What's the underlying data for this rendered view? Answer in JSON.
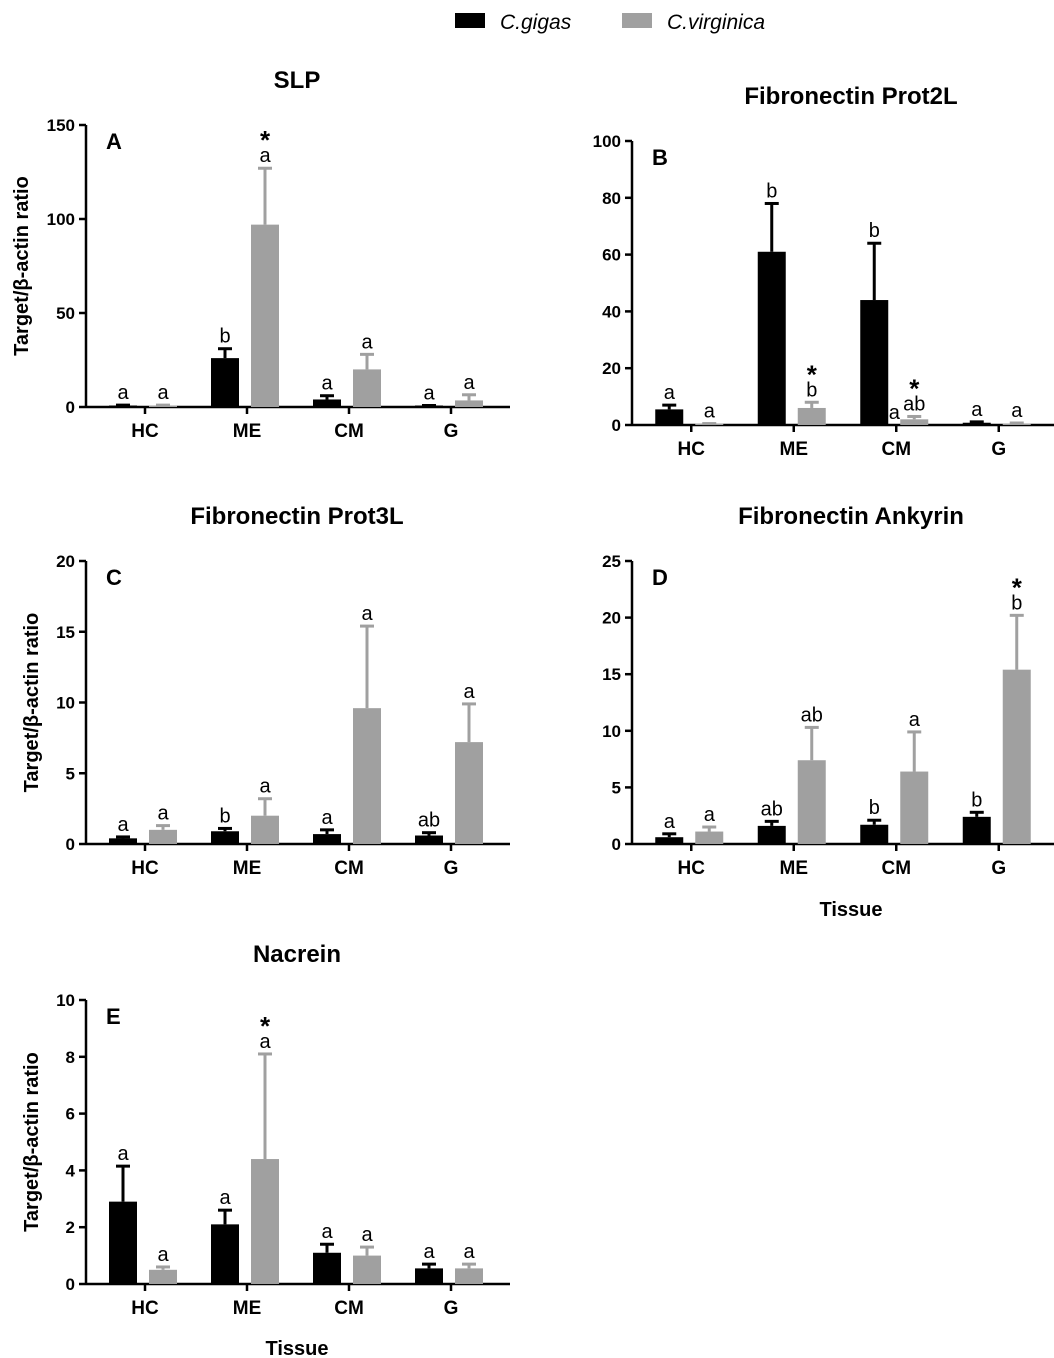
{
  "legend": [
    {
      "name": "C.gigas",
      "color": "#000000"
    },
    {
      "name": "C.virginica",
      "color": "#a0a0a0"
    }
  ],
  "chart_data": [
    {
      "type": "bar",
      "panel": "A",
      "title": "SLP",
      "ylabel": "Target/β-actin ratio",
      "xlabel": "",
      "ylim": [
        0,
        150
      ],
      "yticks": [
        0,
        50,
        100,
        150
      ],
      "categories": [
        "HC",
        "ME",
        "CM",
        "G"
      ],
      "series": [
        {
          "name": "C.gigas",
          "values": [
            0.5,
            26,
            4,
            0.5
          ],
          "errors": [
            0.5,
            5,
            2,
            0.3
          ],
          "labels": [
            "a",
            "b",
            "a",
            "a"
          ],
          "stars": [
            false,
            false,
            false,
            false
          ]
        },
        {
          "name": "C.virginica",
          "values": [
            0.5,
            97,
            20,
            3.5
          ],
          "errors": [
            0.5,
            30,
            8,
            3
          ],
          "labels": [
            "a",
            "a",
            "a",
            "a"
          ],
          "stars": [
            false,
            true,
            false,
            false
          ]
        }
      ]
    },
    {
      "type": "bar",
      "panel": "B",
      "title": "Fibronectin Prot2L",
      "ylabel": "",
      "xlabel": "",
      "ylim": [
        0,
        100
      ],
      "yticks": [
        0,
        20,
        40,
        60,
        80,
        100
      ],
      "categories": [
        "HC",
        "ME",
        "CM",
        "G"
      ],
      "series": [
        {
          "name": "C.gigas",
          "values": [
            5.5,
            61,
            44,
            0.8
          ],
          "errors": [
            1.5,
            17,
            20,
            0.3
          ],
          "labels": [
            "a",
            "b",
            "b",
            "a"
          ],
          "stars": [
            false,
            false,
            false,
            false
          ]
        },
        {
          "name": "C.virginica",
          "values": [
            0.3,
            6,
            2,
            0.5
          ],
          "errors": [
            0.2,
            2,
            1,
            0.2
          ],
          "labels": [
            "a",
            "b",
            "ab",
            "a"
          ],
          "stars": [
            false,
            true,
            true,
            false
          ]
        }
      ],
      "extra_annotations": [
        {
          "text": "a",
          "category": "CM"
        }
      ]
    },
    {
      "type": "bar",
      "panel": "C",
      "title": "Fibronectin Prot3L",
      "ylabel": "Target/β-actin ratio",
      "xlabel": "",
      "ylim": [
        0,
        20
      ],
      "yticks": [
        0,
        5,
        10,
        15,
        20
      ],
      "categories": [
        "HC",
        "ME",
        "CM",
        "G"
      ],
      "series": [
        {
          "name": "C.gigas",
          "values": [
            0.4,
            0.9,
            0.7,
            0.6
          ],
          "errors": [
            0.1,
            0.2,
            0.3,
            0.2
          ],
          "labels": [
            "a",
            "b",
            "a",
            "ab"
          ],
          "stars": [
            false,
            false,
            false,
            false
          ]
        },
        {
          "name": "C.virginica",
          "values": [
            1.0,
            2.0,
            9.6,
            7.2
          ],
          "errors": [
            0.3,
            1.2,
            5.8,
            2.7
          ],
          "labels": [
            "a",
            "a",
            "a",
            "a"
          ],
          "stars": [
            false,
            false,
            false,
            false
          ]
        }
      ]
    },
    {
      "type": "bar",
      "panel": "D",
      "title": "Fibronectin Ankyrin",
      "ylabel": "",
      "xlabel": "Tissue",
      "ylim": [
        0,
        25
      ],
      "yticks": [
        0,
        5,
        10,
        15,
        20,
        25
      ],
      "categories": [
        "HC",
        "ME",
        "CM",
        "G"
      ],
      "series": [
        {
          "name": "C.gigas",
          "values": [
            0.6,
            1.6,
            1.7,
            2.4
          ],
          "errors": [
            0.3,
            0.4,
            0.4,
            0.4
          ],
          "labels": [
            "a",
            "ab",
            "b",
            "b"
          ],
          "stars": [
            false,
            false,
            false,
            false
          ]
        },
        {
          "name": "C.virginica",
          "values": [
            1.1,
            7.4,
            6.4,
            15.4
          ],
          "errors": [
            0.4,
            2.9,
            3.5,
            4.8
          ],
          "labels": [
            "a",
            "ab",
            "a",
            "b"
          ],
          "stars": [
            false,
            false,
            false,
            true
          ]
        }
      ]
    },
    {
      "type": "bar",
      "panel": "E",
      "title": "Nacrein",
      "ylabel": "Target/β-actin ratio",
      "xlabel": "Tissue",
      "ylim": [
        0,
        10
      ],
      "yticks": [
        0,
        2,
        4,
        6,
        8,
        10
      ],
      "categories": [
        "HC",
        "ME",
        "CM",
        "G"
      ],
      "series": [
        {
          "name": "C.gigas",
          "values": [
            2.9,
            2.1,
            1.1,
            0.55
          ],
          "errors": [
            1.25,
            0.5,
            0.3,
            0.15
          ],
          "labels": [
            "a",
            "a",
            "a",
            "a"
          ],
          "stars": [
            false,
            false,
            false,
            false
          ]
        },
        {
          "name": "C.virginica",
          "values": [
            0.5,
            4.4,
            1.0,
            0.55
          ],
          "errors": [
            0.1,
            3.7,
            0.3,
            0.15
          ],
          "labels": [
            "a",
            "a",
            "a",
            "a"
          ],
          "stars": [
            false,
            true,
            false,
            false
          ]
        }
      ]
    }
  ]
}
